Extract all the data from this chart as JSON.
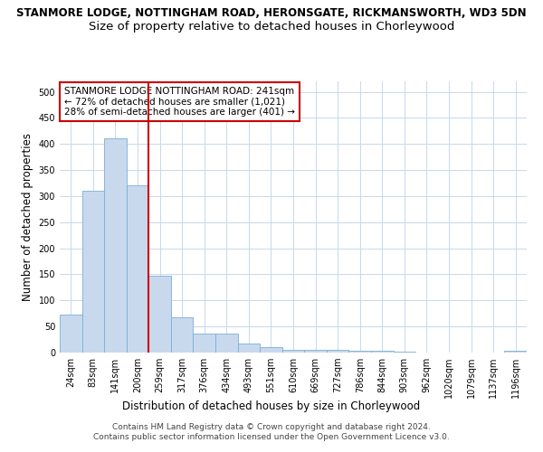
{
  "title": "STANMORE LODGE, NOTTINGHAM ROAD, HERONSGATE, RICKMANSWORTH, WD3 5DN",
  "subtitle": "Size of property relative to detached houses in Chorleywood",
  "xlabel": "Distribution of detached houses by size in Chorleywood",
  "ylabel": "Number of detached properties",
  "bar_labels": [
    "24sqm",
    "83sqm",
    "141sqm",
    "200sqm",
    "259sqm",
    "317sqm",
    "376sqm",
    "434sqm",
    "493sqm",
    "551sqm",
    "610sqm",
    "669sqm",
    "727sqm",
    "786sqm",
    "844sqm",
    "903sqm",
    "962sqm",
    "1020sqm",
    "1079sqm",
    "1137sqm",
    "1196sqm"
  ],
  "bar_values": [
    72,
    310,
    410,
    320,
    148,
    68,
    36,
    36,
    18,
    11,
    5,
    5,
    5,
    3,
    3,
    2,
    0,
    0,
    0,
    0,
    3
  ],
  "bar_color": "#C8D9EE",
  "bar_edgecolor": "#7AAFD4",
  "vline_color": "#CC0000",
  "annotation_text": "STANMORE LODGE NOTTINGHAM ROAD: 241sqm\n← 72% of detached houses are smaller (1,021)\n28% of semi-detached houses are larger (401) →",
  "annotation_box_color": "#FFFFFF",
  "annotation_box_edgecolor": "#CC0000",
  "ylim": [
    0,
    520
  ],
  "yticks": [
    0,
    50,
    100,
    150,
    200,
    250,
    300,
    350,
    400,
    450,
    500
  ],
  "footnote": "Contains HM Land Registry data © Crown copyright and database right 2024.\nContains public sector information licensed under the Open Government Licence v3.0.",
  "background_color": "#FFFFFF",
  "grid_color": "#C8D8EC",
  "title_fontsize": 8.5,
  "subtitle_fontsize": 9.5,
  "axis_label_fontsize": 8.5,
  "tick_fontsize": 7,
  "footnote_fontsize": 6.5,
  "annotation_fontsize": 7.5
}
